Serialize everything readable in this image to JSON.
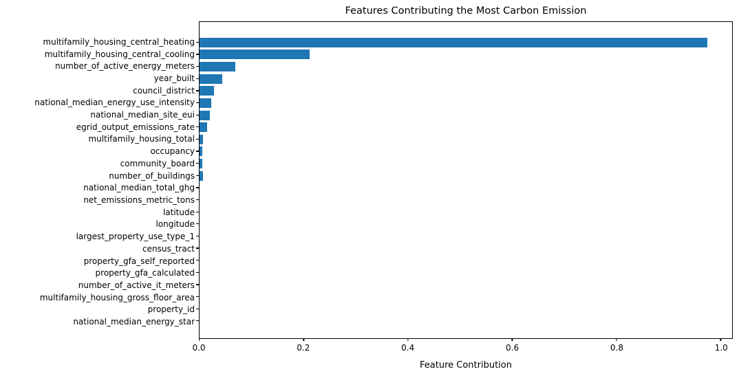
{
  "chart_data": {
    "type": "bar",
    "orientation": "horizontal",
    "title": "Features Contributing the Most Carbon Emission",
    "xlabel": "Feature Contribution",
    "ylabel": "",
    "categories": [
      "multifamily_housing_central_heating",
      "multifamily_housing_central_cooling",
      "number_of_active_energy_meters",
      "year_built",
      "council_district",
      "national_median_energy_use_intensity",
      "national_median_site_eui",
      "egrid_output_emissions_rate",
      "multifamily_housing_total",
      "occupancy",
      "community_board",
      "number_of_buildings",
      "national_median_total_ghg",
      "net_emissions_metric_tons",
      "latitude",
      "longitude",
      "largest_property_use_type_1",
      "census_tract",
      "property_gfa_self_reported",
      "property_gfa_calculated",
      "number_of_active_it_meters",
      "multifamily_housing_gross_floor_area",
      "property_id",
      "national_median_energy_star"
    ],
    "values": [
      0.974,
      0.211,
      0.069,
      0.044,
      0.028,
      0.022,
      0.02,
      0.015,
      0.007,
      0.005,
      0.005,
      0.006,
      0.0,
      0.0,
      0.0,
      0.0,
      0.0,
      0.0,
      0.0,
      0.0,
      0.0,
      0.0,
      0.0,
      0.0
    ],
    "xlim": [
      0.0,
      1.022
    ],
    "xticks": [
      0.0,
      0.2,
      0.4,
      0.6,
      0.8,
      1.0
    ],
    "xtick_labels": [
      "0.0",
      "0.2",
      "0.4",
      "0.6",
      "0.8",
      "1.0"
    ],
    "bar_color": "#1f77b4",
    "background_color": "#ffffff",
    "grid": false,
    "legend": null
  }
}
